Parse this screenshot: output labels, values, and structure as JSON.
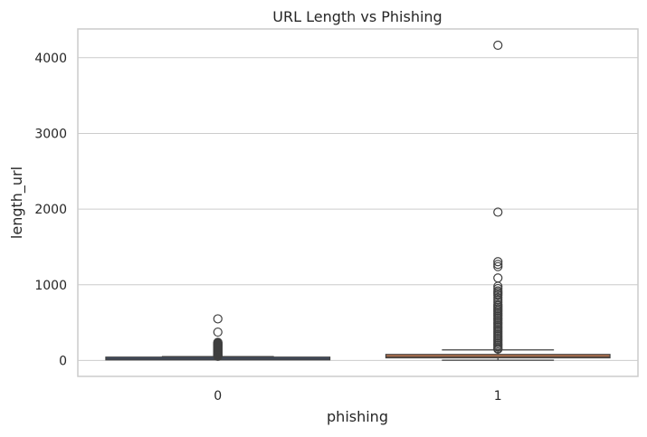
{
  "chart_data": {
    "type": "box",
    "title": "URL Length vs Phishing",
    "xlabel": "phishing",
    "ylabel": "length_url",
    "categories": [
      "0",
      "1"
    ],
    "ylim": [
      -210,
      4380
    ],
    "yticks": [
      0,
      1000,
      2000,
      3000,
      4000
    ],
    "grid": true,
    "boxes": [
      {
        "category": "0",
        "whisker_low": 12,
        "q1": 20,
        "median": 26,
        "q3": 33,
        "whisker_high": 52,
        "outliers": [
          550,
          375,
          240,
          232,
          224,
          216,
          208,
          200,
          192,
          184,
          176,
          168,
          160,
          152,
          144,
          136,
          128,
          120,
          112,
          104,
          96,
          88,
          80,
          72,
          65,
          60,
          56
        ]
      },
      {
        "category": "1",
        "whisker_low": 4,
        "q1": 35,
        "median": 52,
        "q3": 80,
        "whisker_high": 140,
        "outliers": [
          4165,
          1960,
          1305,
          1270,
          1240,
          1090,
          980,
          950,
          920,
          900,
          880,
          860,
          830,
          800,
          770,
          740,
          720,
          700,
          680,
          660,
          640,
          620,
          600,
          580,
          560,
          540,
          520,
          500,
          480,
          460,
          440,
          420,
          400,
          380,
          360,
          340,
          320,
          300,
          280,
          260,
          240,
          220,
          200,
          180,
          160,
          150
        ]
      }
    ],
    "colors": {
      "box_0": "#4c72b0",
      "box_1": "#dd8452",
      "edge": "#3f3f3f",
      "grid": "#cccccc",
      "axes_edge": "#cccccc",
      "outlier_edge": "#3f3f3f",
      "background": "#ffffff"
    }
  }
}
